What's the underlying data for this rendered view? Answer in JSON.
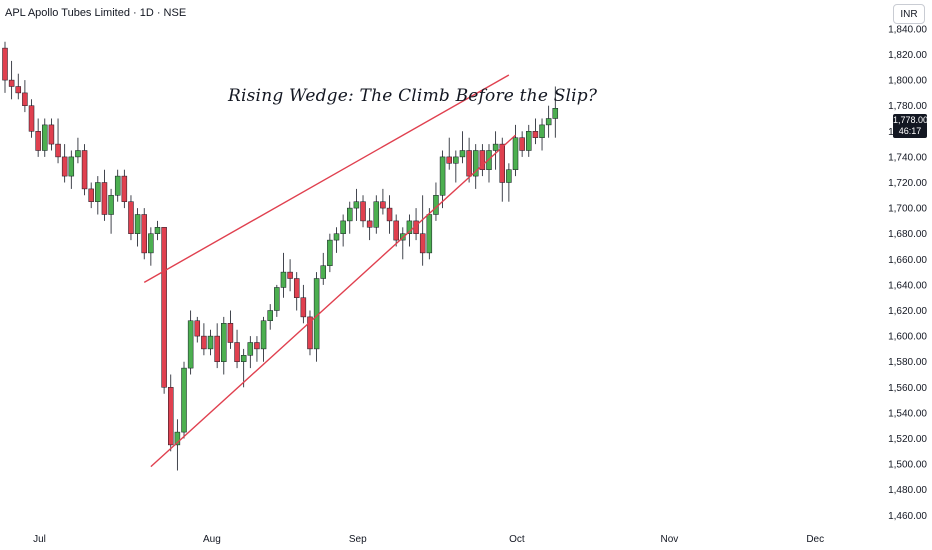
{
  "header": {
    "symbol_line": "APL Apollo Tubes Limited · 1D · NSE",
    "currency": "INR"
  },
  "annotation": "Rising Wedge: The Climb Before the Slip?",
  "last_price": {
    "price": "1,778.00",
    "countdown": "46:17"
  },
  "colors": {
    "up": "#4caf50",
    "down": "#e0404f",
    "wedge": "#e0404f",
    "text": "#131722",
    "badge": "#131722"
  },
  "chart_data": {
    "type": "candlestick",
    "title": "APL Apollo Tubes Limited · 1D · NSE",
    "ylim": [
      1460,
      1850
    ],
    "y_ticks": [
      "1,460.00",
      "1,480.00",
      "1,500.00",
      "1,520.00",
      "1,540.00",
      "1,560.00",
      "1,580.00",
      "1,600.00",
      "1,620.00",
      "1,640.00",
      "1,660.00",
      "1,680.00",
      "1,700.00",
      "1,720.00",
      "1,740.00",
      "1,760.00",
      "1,780.00",
      "1,800.00",
      "1,820.00",
      "1,840.00"
    ],
    "y_tick_values": [
      1460,
      1480,
      1500,
      1520,
      1540,
      1560,
      1580,
      1600,
      1620,
      1640,
      1660,
      1680,
      1700,
      1720,
      1740,
      1760,
      1780,
      1800,
      1820,
      1840
    ],
    "x_labels": [
      {
        "label": "Jul",
        "index": 4
      },
      {
        "label": "Aug",
        "index": 30
      },
      {
        "label": "Sep",
        "index": 52
      },
      {
        "label": "Oct",
        "index": 76
      },
      {
        "label": "Nov",
        "index": 99
      },
      {
        "label": "Dec",
        "index": 121
      }
    ],
    "candles": [
      [
        1825,
        1830,
        1790,
        1800
      ],
      [
        1800,
        1815,
        1785,
        1795
      ],
      [
        1795,
        1805,
        1785,
        1790
      ],
      [
        1790,
        1800,
        1775,
        1780
      ],
      [
        1780,
        1785,
        1755,
        1760
      ],
      [
        1760,
        1770,
        1740,
        1745
      ],
      [
        1745,
        1770,
        1740,
        1765
      ],
      [
        1765,
        1770,
        1745,
        1750
      ],
      [
        1750,
        1770,
        1735,
        1740
      ],
      [
        1740,
        1750,
        1720,
        1725
      ],
      [
        1725,
        1745,
        1715,
        1740
      ],
      [
        1740,
        1755,
        1735,
        1745
      ],
      [
        1745,
        1750,
        1710,
        1715
      ],
      [
        1715,
        1720,
        1700,
        1705
      ],
      [
        1705,
        1725,
        1695,
        1720
      ],
      [
        1720,
        1730,
        1690,
        1695
      ],
      [
        1695,
        1715,
        1680,
        1710
      ],
      [
        1710,
        1730,
        1705,
        1725
      ],
      [
        1725,
        1730,
        1700,
        1705
      ],
      [
        1705,
        1710,
        1675,
        1680
      ],
      [
        1680,
        1700,
        1670,
        1695
      ],
      [
        1695,
        1700,
        1660,
        1665
      ],
      [
        1665,
        1685,
        1655,
        1680
      ],
      [
        1680,
        1690,
        1675,
        1685
      ],
      [
        1685,
        1685,
        1555,
        1560
      ],
      [
        1560,
        1570,
        1510,
        1515
      ],
      [
        1515,
        1535,
        1495,
        1525
      ],
      [
        1525,
        1580,
        1520,
        1575
      ],
      [
        1575,
        1620,
        1570,
        1612
      ],
      [
        1612,
        1615,
        1595,
        1600
      ],
      [
        1600,
        1610,
        1585,
        1590
      ],
      [
        1590,
        1605,
        1585,
        1600
      ],
      [
        1600,
        1610,
        1575,
        1580
      ],
      [
        1580,
        1615,
        1570,
        1610
      ],
      [
        1610,
        1620,
        1590,
        1595
      ],
      [
        1595,
        1605,
        1575,
        1580
      ],
      [
        1580,
        1590,
        1560,
        1585
      ],
      [
        1585,
        1600,
        1575,
        1595
      ],
      [
        1595,
        1600,
        1580,
        1590
      ],
      [
        1590,
        1615,
        1580,
        1612
      ],
      [
        1612,
        1625,
        1605,
        1620
      ],
      [
        1620,
        1640,
        1615,
        1638
      ],
      [
        1638,
        1665,
        1630,
        1650
      ],
      [
        1650,
        1660,
        1635,
        1645
      ],
      [
        1645,
        1650,
        1620,
        1630
      ],
      [
        1630,
        1640,
        1610,
        1615
      ],
      [
        1615,
        1620,
        1585,
        1590
      ],
      [
        1590,
        1650,
        1580,
        1645
      ],
      [
        1645,
        1665,
        1640,
        1655
      ],
      [
        1655,
        1680,
        1650,
        1675
      ],
      [
        1675,
        1685,
        1665,
        1680
      ],
      [
        1680,
        1695,
        1670,
        1690
      ],
      [
        1690,
        1705,
        1680,
        1700
      ],
      [
        1700,
        1715,
        1690,
        1705
      ],
      [
        1705,
        1710,
        1685,
        1690
      ],
      [
        1690,
        1700,
        1675,
        1685
      ],
      [
        1685,
        1710,
        1680,
        1705
      ],
      [
        1705,
        1715,
        1695,
        1700
      ],
      [
        1700,
        1710,
        1680,
        1690
      ],
      [
        1690,
        1695,
        1670,
        1675
      ],
      [
        1675,
        1685,
        1660,
        1680
      ],
      [
        1680,
        1695,
        1670,
        1690
      ],
      [
        1690,
        1700,
        1675,
        1680
      ],
      [
        1680,
        1710,
        1655,
        1665
      ],
      [
        1665,
        1700,
        1660,
        1695
      ],
      [
        1695,
        1720,
        1690,
        1710
      ],
      [
        1710,
        1745,
        1700,
        1740
      ],
      [
        1740,
        1755,
        1730,
        1735
      ],
      [
        1735,
        1745,
        1720,
        1740
      ],
      [
        1740,
        1760,
        1735,
        1745
      ],
      [
        1745,
        1755,
        1720,
        1725
      ],
      [
        1725,
        1750,
        1715,
        1745
      ],
      [
        1745,
        1750,
        1725,
        1730
      ],
      [
        1730,
        1750,
        1720,
        1745
      ],
      [
        1745,
        1760,
        1730,
        1750
      ],
      [
        1750,
        1755,
        1705,
        1720
      ],
      [
        1720,
        1735,
        1705,
        1730
      ],
      [
        1730,
        1765,
        1725,
        1755
      ],
      [
        1755,
        1760,
        1740,
        1745
      ],
      [
        1745,
        1765,
        1740,
        1760
      ],
      [
        1760,
        1770,
        1750,
        1755
      ],
      [
        1755,
        1770,
        1745,
        1765
      ],
      [
        1765,
        1780,
        1755,
        1770
      ],
      [
        1770,
        1795,
        1755,
        1778
      ]
    ],
    "wedge_lines": [
      {
        "from": {
          "index": 21,
          "value": 1642
        },
        "to": {
          "index": 76,
          "value": 1804
        }
      },
      {
        "from": {
          "index": 22,
          "value": 1498
        },
        "to": {
          "index": 77,
          "value": 1757
        }
      }
    ]
  }
}
